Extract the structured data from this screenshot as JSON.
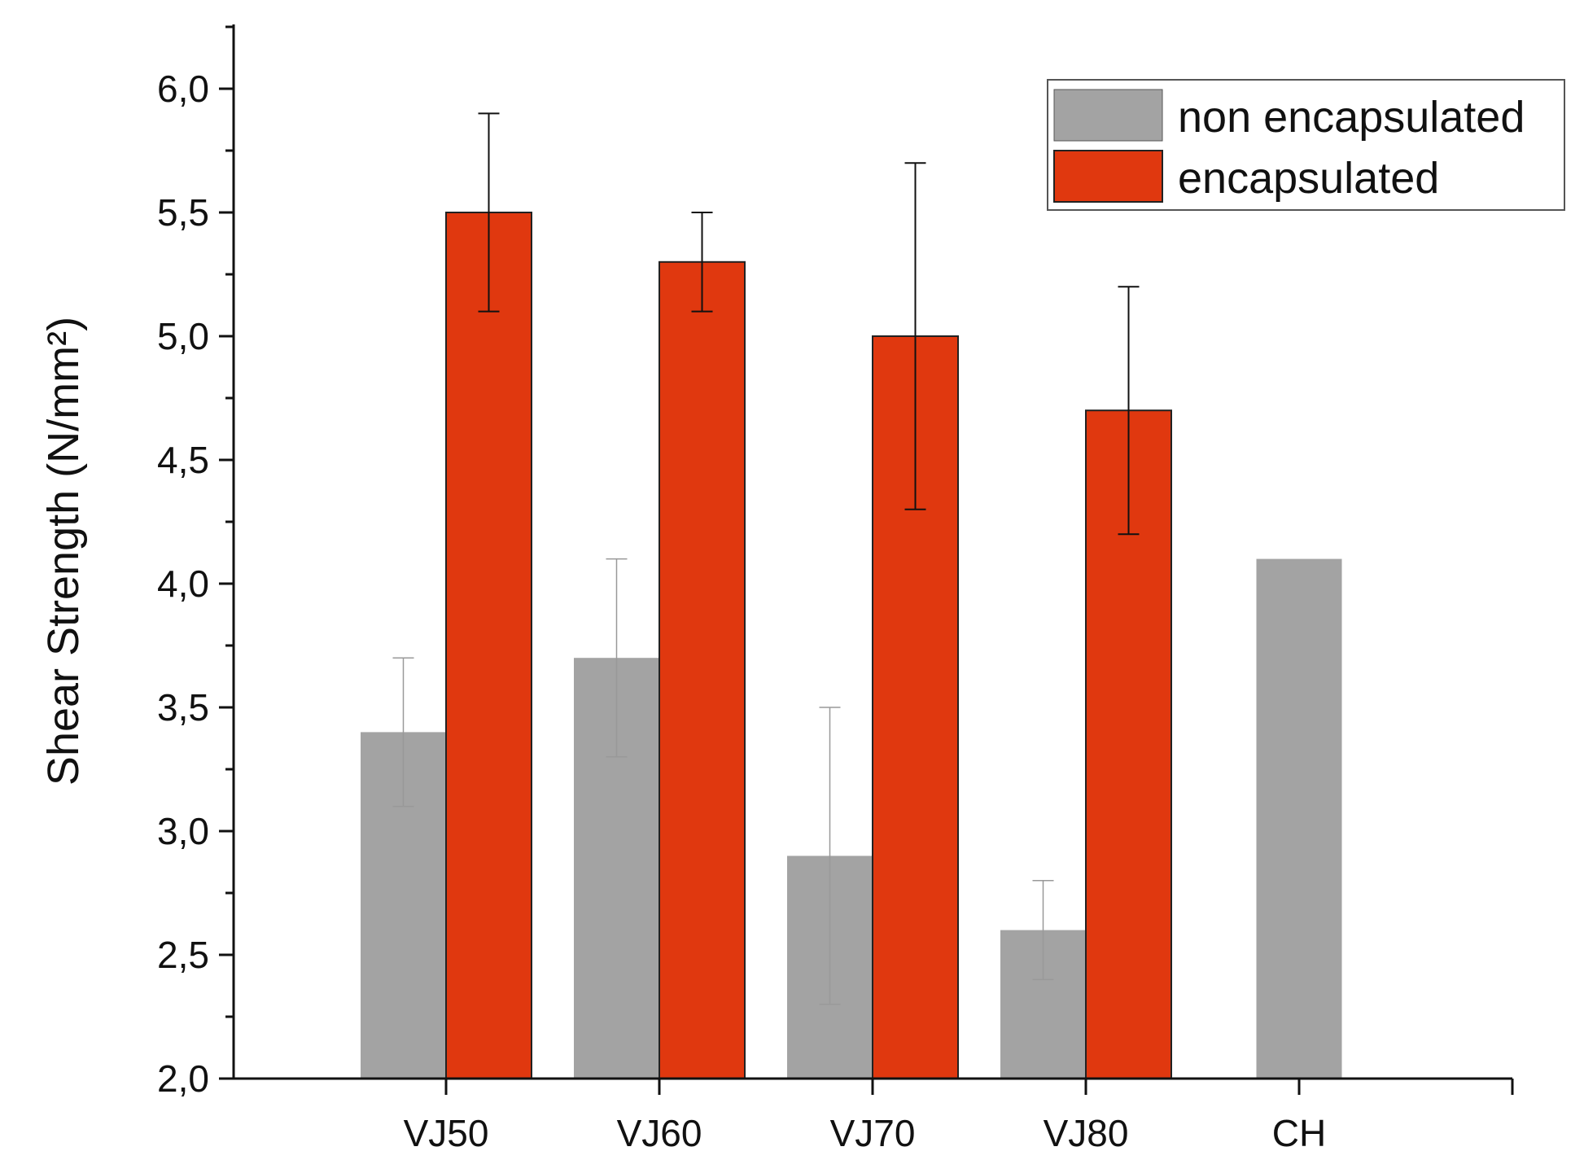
{
  "chart_data": {
    "type": "bar",
    "title": "",
    "xlabel": "",
    "ylabel": "Shear Strength (N/mm²)",
    "ylim": [
      2.0,
      6.25
    ],
    "yticks": [
      "2,0",
      "2,5",
      "3,0",
      "3,5",
      "4,0",
      "4,5",
      "5,0",
      "5,5",
      "6,0"
    ],
    "categories": [
      "VJ50",
      "VJ60",
      "VJ70",
      "VJ80",
      "CH"
    ],
    "series": [
      {
        "name": "non encapsulated",
        "color": "#a3a3a3",
        "error_color": "#999999",
        "values": [
          3.4,
          3.7,
          2.9,
          2.6,
          4.1
        ],
        "errors": [
          0.3,
          0.4,
          0.6,
          0.2,
          null
        ]
      },
      {
        "name": "encapsulated",
        "color": "#e0380f",
        "error_color": "#111111",
        "values": [
          5.5,
          5.3,
          5.0,
          4.7,
          null
        ],
        "errors": [
          0.4,
          0.2,
          0.7,
          0.5,
          null
        ]
      }
    ],
    "legend": {
      "position": "top-right"
    },
    "grid": false
  }
}
